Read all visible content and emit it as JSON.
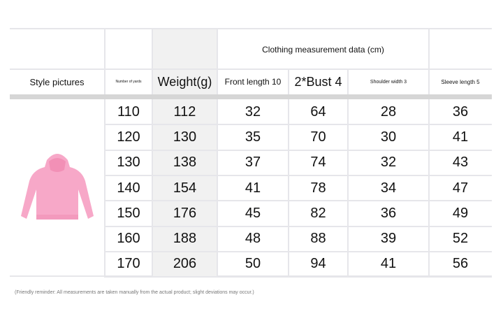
{
  "header": {
    "group_title": "Clothing measurement data (cm)",
    "columns": [
      "Style pictures",
      "Number of yards",
      "Weight(g)",
      "Front length 10",
      "2*Bust 4",
      "Shoulder width 3",
      "Sleeve length 5"
    ]
  },
  "rows": [
    [
      "110",
      "112",
      "32",
      "64",
      "28",
      "36"
    ],
    [
      "120",
      "130",
      "35",
      "70",
      "30",
      "41"
    ],
    [
      "130",
      "138",
      "37",
      "74",
      "32",
      "43"
    ],
    [
      "140",
      "154",
      "41",
      "78",
      "34",
      "47"
    ],
    [
      "150",
      "176",
      "45",
      "82",
      "36",
      "49"
    ],
    [
      "160",
      "188",
      "48",
      "88",
      "39",
      "52"
    ],
    [
      "170",
      "206",
      "50",
      "94",
      "41",
      "56"
    ]
  ],
  "product_image": {
    "icon": "pink-hoodie",
    "color": "#f7a8c8"
  },
  "note": "(Friendly reminder: All measurements are taken manually from the actual product; slight deviations may occur.)"
}
